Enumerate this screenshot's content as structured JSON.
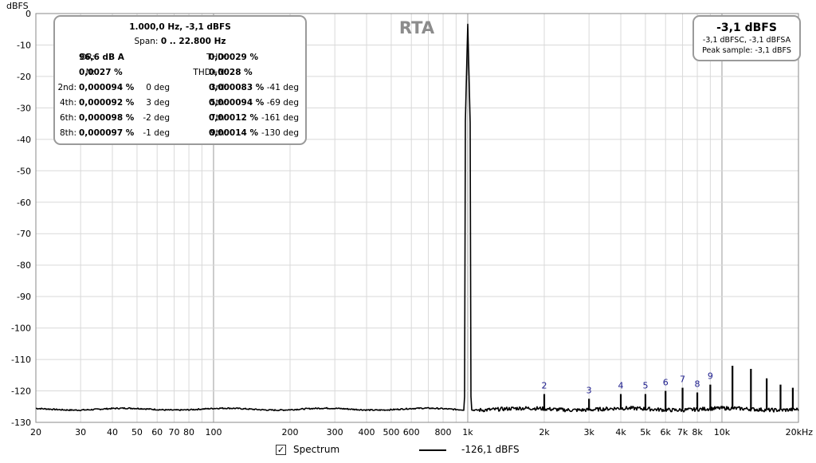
{
  "chart_data": {
    "type": "line",
    "title": "RTA",
    "ylabel": "dBFS",
    "xlabel": "",
    "x_scale": "log",
    "xlim": [
      20,
      20000
    ],
    "ylim": [
      -130,
      0
    ],
    "grid": true,
    "y_ticks": [
      0,
      -10,
      -20,
      -30,
      -40,
      -50,
      -60,
      -70,
      -80,
      -90,
      -100,
      -110,
      -120,
      -130
    ],
    "x_ticks": [
      {
        "v": 20,
        "label": "20"
      },
      {
        "v": 30,
        "label": "30"
      },
      {
        "v": 40,
        "label": "40"
      },
      {
        "v": 50,
        "label": "50"
      },
      {
        "v": 60,
        "label": "60"
      },
      {
        "v": 70,
        "label": "70"
      },
      {
        "v": 80,
        "label": "80"
      },
      {
        "v": 100,
        "label": "100"
      },
      {
        "v": 200,
        "label": "200"
      },
      {
        "v": 300,
        "label": "300"
      },
      {
        "v": 400,
        "label": "400"
      },
      {
        "v": 500,
        "label": "500"
      },
      {
        "v": 600,
        "label": "600"
      },
      {
        "v": 800,
        "label": "800"
      },
      {
        "v": 1000,
        "label": "1k"
      },
      {
        "v": 2000,
        "label": "2k"
      },
      {
        "v": 3000,
        "label": "3k"
      },
      {
        "v": 4000,
        "label": "4k"
      },
      {
        "v": 5000,
        "label": "5k"
      },
      {
        "v": 6000,
        "label": "6k"
      },
      {
        "v": 7000,
        "label": "7k"
      },
      {
        "v": 8000,
        "label": "8k"
      },
      {
        "v": 10000,
        "label": "10k"
      },
      {
        "v": 20000,
        "label": "20kHz"
      }
    ],
    "fundamental": {
      "x": 1000,
      "y": -3.1
    },
    "noise_floor": -125.8,
    "harmonics": [
      {
        "n": "2",
        "x": 2000,
        "y": -121
      },
      {
        "n": "3",
        "x": 3000,
        "y": -122.5
      },
      {
        "n": "4",
        "x": 4000,
        "y": -121
      },
      {
        "n": "5",
        "x": 5000,
        "y": -121
      },
      {
        "n": "6",
        "x": 6000,
        "y": -120
      },
      {
        "n": "7",
        "x": 7000,
        "y": -119
      },
      {
        "n": "8",
        "x": 8000,
        "y": -120.5
      },
      {
        "n": "9",
        "x": 9000,
        "y": -118
      }
    ],
    "unlabeled_peaks": [
      {
        "x": 11000,
        "y": -112
      },
      {
        "x": 13000,
        "y": -113
      },
      {
        "x": 15000,
        "y": -116
      },
      {
        "x": 17000,
        "y": -118
      },
      {
        "x": 19000,
        "y": -119
      }
    ],
    "series": [
      {
        "name": "Spectrum",
        "value_label": "-126,1 dBFS",
        "color": "#000000"
      }
    ]
  },
  "stats_panel": {
    "line1": "1.000,0 Hz, -3,1 dBFS",
    "span_label": "Span:",
    "span_value": "0 .. 22.800 Hz",
    "dr_label": "DR:",
    "dr_value": "96,6 dB A",
    "thd_label": "THD:",
    "thd_value": "0,00029 %",
    "n_label": "N:",
    "n_value": "0,0027 %",
    "thdn_label": "THD+N:",
    "thdn_value": "0,0028 %",
    "rows": [
      {
        "l1": "2nd:",
        "v1": "0,000094 %",
        "d1": "0 deg",
        "l2": "3rd:",
        "v2": "0,000083 %",
        "d2": "-41 deg"
      },
      {
        "l1": "4th:",
        "v1": "0,000092 %",
        "d1": "3 deg",
        "l2": "5th:",
        "v2": "0,000094 %",
        "d2": "-69 deg"
      },
      {
        "l1": "6th:",
        "v1": "0,000098 %",
        "d1": "-2 deg",
        "l2": "7th:",
        "v2": "0,00012 %",
        "d2": "-161 deg"
      },
      {
        "l1": "8th:",
        "v1": "0,000097 %",
        "d1": "-1 deg",
        "l2": "9th:",
        "v2": "0,00014 %",
        "d2": "-130 deg"
      }
    ]
  },
  "peak_panel": {
    "level": "-3,1 dBFS",
    "sub": "-3,1 dBFSC, -3,1 dBFSA",
    "peak_sample": "Peak sample: -3,1 dBFS"
  },
  "legend": {
    "checkbox_label": "Spectrum",
    "checked": true,
    "value": "-126,1 dBFS"
  }
}
